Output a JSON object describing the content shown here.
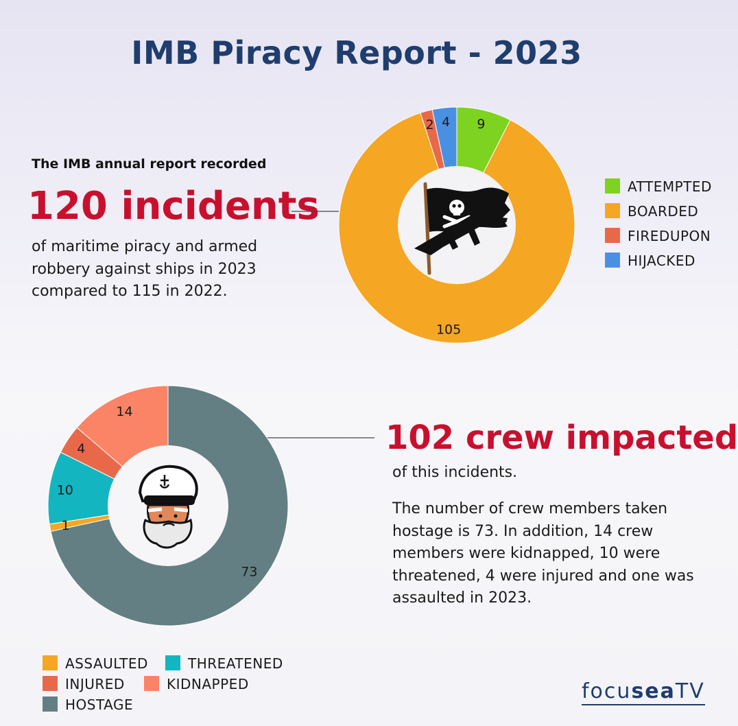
{
  "title": "IMB Piracy Report - 2023",
  "incidents": {
    "intro": "The IMB annual report recorded",
    "headline": "120 incidents",
    "description": "of maritime piracy and armed robbery against ships in 2023 compared to 115 in 2022."
  },
  "crew": {
    "headline": "102 crew impacted",
    "subline": "of this incidents.",
    "description": "The number of crew members taken hostage is 73. In addition, 14 crew members were kidnapped, 10 were threatened, 4 were injured and one was assaulted in 2023."
  },
  "logo": {
    "part1": "focu",
    "part2": "sea",
    "part3": "TV"
  },
  "chart_data": [
    {
      "type": "pie",
      "variant": "donut",
      "categories": [
        "ATTEMPTED",
        "BOARDED",
        "FIREDUPON",
        "HIJACKED"
      ],
      "values": [
        9,
        105,
        2,
        4
      ],
      "labels": [
        "9",
        "105",
        "2",
        "4"
      ],
      "colors": [
        "#7ed321",
        "#f5a623",
        "#e8694a",
        "#4a90e2"
      ],
      "legend_placement": "right",
      "center_icon": "pirate-flag-icon"
    },
    {
      "type": "pie",
      "variant": "donut",
      "categories": [
        "HOSTAGE",
        "ASSAULTED",
        "THREATENED",
        "INJURED",
        "KIDNAPPED"
      ],
      "values": [
        73,
        1,
        10,
        4,
        14
      ],
      "labels": [
        "73",
        "1",
        "10",
        "4",
        "14"
      ],
      "colors": [
        "#637f83",
        "#f5a623",
        "#13b5c1",
        "#e8694a",
        "#fb8466"
      ],
      "legend_placement": "bottom-left",
      "legend_order": [
        "ASSAULTED",
        "THREATENED",
        "INJURED",
        "KIDNAPPED",
        "HOSTAGE"
      ],
      "center_icon": "sea-captain-icon"
    }
  ]
}
